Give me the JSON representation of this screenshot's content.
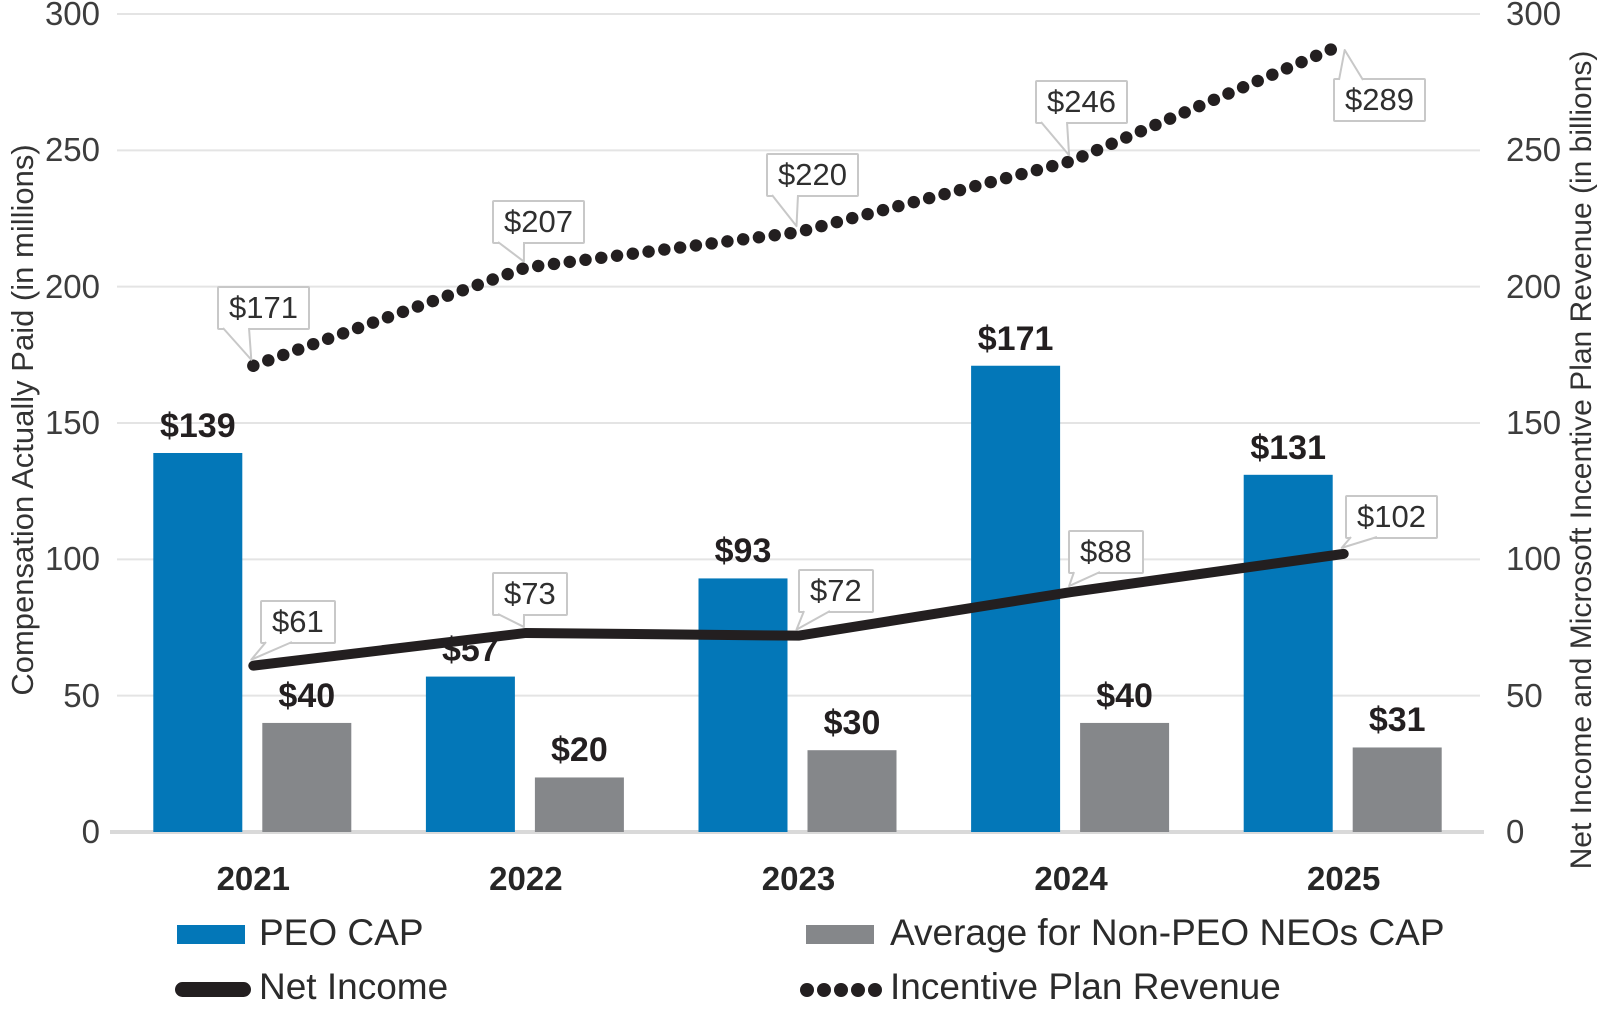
{
  "chart_data": {
    "type": "combo",
    "categories": [
      "2021",
      "2022",
      "2023",
      "2024",
      "2025"
    ],
    "series": [
      {
        "name": "PEO CAP",
        "type": "bar",
        "color": "#0377B8",
        "values": [
          139,
          57,
          93,
          171,
          131
        ],
        "labels": [
          "$139",
          "$57",
          "$93",
          "$171",
          "$131"
        ]
      },
      {
        "name": "Average for Non-PEO NEOs CAP",
        "type": "bar",
        "color": "#85878A",
        "values": [
          40,
          20,
          30,
          40,
          31
        ],
        "labels": [
          "$40",
          "$20",
          "$30",
          "$40",
          "$31"
        ]
      },
      {
        "name": "Net Income",
        "type": "line",
        "style": "solid",
        "color": "#231F20",
        "values": [
          61,
          73,
          72,
          88,
          102
        ],
        "labels": [
          "$61",
          "$73",
          "$72",
          "$88",
          "$102"
        ]
      },
      {
        "name": "Incentive Plan Revenue",
        "type": "line",
        "style": "dotted",
        "color": "#231F20",
        "values": [
          171,
          207,
          220,
          246,
          289
        ],
        "labels": [
          "$171",
          "$207",
          "$220",
          "$246",
          "$289"
        ]
      }
    ],
    "left_axis": {
      "title": "Compensation Actually Paid (in millions)",
      "tick_values": [
        0,
        50,
        100,
        150,
        200,
        250,
        300
      ],
      "tick_labels": [
        "0",
        "50",
        "100",
        "150",
        "200",
        "250",
        "300"
      ],
      "range": [
        0,
        300
      ]
    },
    "right_axis": {
      "title": "Net Income and Microsoft Incentive Plan Revenue (in billions)",
      "tick_values": [
        0,
        50,
        100,
        150,
        200,
        250,
        300
      ],
      "tick_labels": [
        "0",
        "50",
        "100",
        "150",
        "200",
        "250",
        "300"
      ],
      "range": [
        0,
        300
      ]
    },
    "grid": true,
    "legend_position": "bottom",
    "legend": {
      "columns": [
        [
          {
            "label": "PEO CAP",
            "swatch": "bar",
            "color": "#0377B8"
          },
          {
            "label": "Net Income",
            "swatch": "line",
            "color": "#231F20"
          }
        ],
        [
          {
            "label": "Average for Non-PEO NEOs CAP",
            "swatch": "bar",
            "color": "#85878A"
          },
          {
            "label": "Incentive Plan Revenue",
            "swatch": "dots",
            "color": "#231F20"
          }
        ]
      ]
    }
  }
}
